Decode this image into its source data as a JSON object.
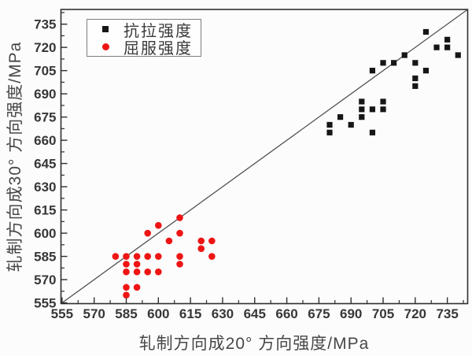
{
  "chart_data": {
    "type": "scatter",
    "title": "",
    "xlabel": "轧制方向成20° 方向强度/MPa",
    "ylabel": "轧制方向成30° 方向强度/MPa",
    "xlim": [
      554.5,
      744.5
    ],
    "ylim": [
      554.5,
      744.5
    ],
    "x_ticks": [
      555,
      570,
      585,
      600,
      615,
      630,
      645,
      660,
      675,
      690,
      705,
      720,
      735
    ],
    "y_ticks": [
      555,
      570,
      585,
      600,
      615,
      630,
      645,
      660,
      675,
      690,
      705,
      720,
      735
    ],
    "minor_tick_step": 7.5,
    "grid": false,
    "legend_position": "top-left",
    "reference_line": {
      "type": "identity",
      "from": [
        554.5,
        554.5
      ],
      "to": [
        744.5,
        744.5
      ],
      "color": "#525252"
    },
    "series": [
      {
        "name": "抗拉强度",
        "marker": "square",
        "color": "#161616",
        "points": [
          [
            725,
            730
          ],
          [
            735,
            725
          ],
          [
            730,
            720
          ],
          [
            735,
            720
          ],
          [
            740,
            715
          ],
          [
            715,
            715
          ],
          [
            720,
            710
          ],
          [
            710,
            710
          ],
          [
            705,
            710
          ],
          [
            700,
            705
          ],
          [
            725,
            705
          ],
          [
            720,
            700
          ],
          [
            720,
            695
          ],
          [
            705,
            685
          ],
          [
            695,
            685
          ],
          [
            695,
            680
          ],
          [
            700,
            680
          ],
          [
            705,
            680
          ],
          [
            695,
            675
          ],
          [
            685,
            675
          ],
          [
            690,
            670
          ],
          [
            680,
            670
          ],
          [
            680,
            665
          ],
          [
            700,
            665
          ]
        ]
      },
      {
        "name": "屈服强度",
        "marker": "circle",
        "color": "#ee1414",
        "points": [
          [
            610,
            610
          ],
          [
            600,
            605
          ],
          [
            595,
            600
          ],
          [
            610,
            600
          ],
          [
            605,
            595
          ],
          [
            620,
            595
          ],
          [
            625,
            595
          ],
          [
            620,
            590
          ],
          [
            580,
            585
          ],
          [
            585,
            585
          ],
          [
            590,
            585
          ],
          [
            595,
            585
          ],
          [
            600,
            585
          ],
          [
            610,
            585
          ],
          [
            625,
            585
          ],
          [
            585,
            580
          ],
          [
            590,
            580
          ],
          [
            610,
            580
          ],
          [
            585,
            575
          ],
          [
            590,
            575
          ],
          [
            595,
            575
          ],
          [
            600,
            575
          ],
          [
            585,
            565
          ],
          [
            590,
            565
          ],
          [
            585,
            560
          ]
        ]
      }
    ],
    "axis_color": "#2f2f2f",
    "tick_label_color": "#373737"
  }
}
